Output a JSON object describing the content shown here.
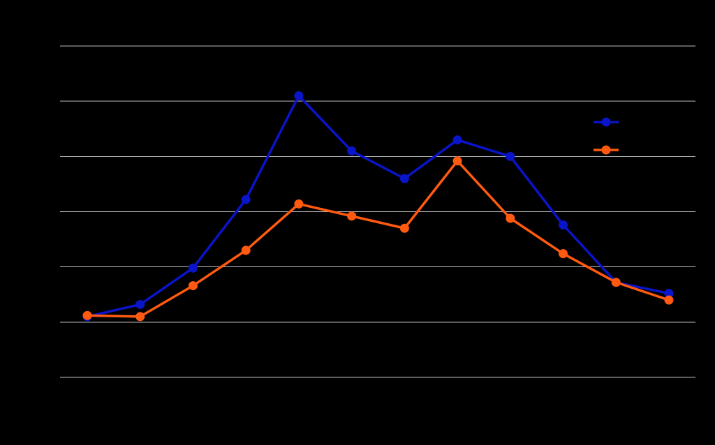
{
  "colors": {
    "background": "#000000",
    "grid": "#bdbdbd",
    "series_1": "#0a14c8",
    "series_2": "#ff5a0f"
  },
  "chart_data": {
    "type": "line",
    "title": "",
    "xlabel": "",
    "ylabel": "",
    "grid": true,
    "legend_placement": "top-right",
    "ylim": [
      -1,
      5
    ],
    "y_gridlines": [
      -1,
      0,
      1,
      2,
      3,
      4,
      5
    ],
    "x": [
      1,
      2,
      3,
      4,
      5,
      6,
      7,
      8,
      9,
      10,
      11,
      12
    ],
    "series": [
      {
        "values": [
          0.1,
          0.32,
          0.98,
          2.22,
          4.1,
          3.1,
          2.6,
          3.3,
          3.0,
          1.76,
          0.72,
          0.52
        ],
        "color": "#0a14c8",
        "marker": "circle"
      },
      {
        "values": [
          0.12,
          0.1,
          0.66,
          1.3,
          2.14,
          1.92,
          1.7,
          2.92,
          1.88,
          1.24,
          0.72,
          0.4
        ],
        "color": "#ff5a0f",
        "marker": "circle"
      }
    ]
  }
}
